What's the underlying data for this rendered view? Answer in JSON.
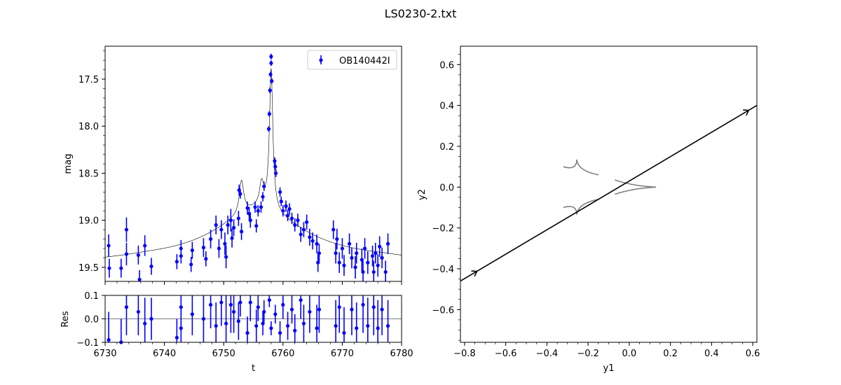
{
  "figure": {
    "title": "LS0230-2.txt"
  },
  "chart_data": [
    {
      "panel": "light-curve",
      "type": "scatter",
      "xlabel": "",
      "ylabel": "mag",
      "xlim": [
        6730,
        6780
      ],
      "ylim": [
        19.65,
        17.15
      ],
      "y_inverted": true,
      "xticks": [
        6730,
        6740,
        6750,
        6760,
        6770,
        6780
      ],
      "yticks": [
        17.5,
        18.0,
        18.5,
        19.0,
        19.5
      ],
      "ytick_labels": [
        "17.5",
        "18.0",
        "18.5",
        "19.0",
        "19.5"
      ],
      "legend": {
        "label": "OB140442I",
        "position": "top-right"
      },
      "series": [
        {
          "name": "OB140442I",
          "color": "#0000ff",
          "points": [
            [
              6730.6,
              19.27,
              0.12
            ],
            [
              6730.7,
              19.51,
              0.1
            ],
            [
              6732.7,
              19.51,
              0.1
            ],
            [
              6733.6,
              19.36,
              0.12
            ],
            [
              6733.6,
              19.1,
              0.13
            ],
            [
              6735.6,
              19.37,
              0.1
            ],
            [
              6735.8,
              19.63,
              0.1
            ],
            [
              6736.7,
              19.27,
              0.11
            ],
            [
              6737.8,
              19.49,
              0.09
            ],
            [
              6742.1,
              19.44,
              0.08
            ],
            [
              6742.8,
              19.38,
              0.08
            ],
            [
              6742.8,
              19.3,
              0.09
            ],
            [
              6744.5,
              19.47,
              0.08
            ],
            [
              6744.7,
              19.32,
              0.09
            ],
            [
              6746.6,
              19.29,
              0.1
            ],
            [
              6747.0,
              19.41,
              0.08
            ],
            [
              6747.8,
              19.2,
              0.1
            ],
            [
              6748.7,
              19.05,
              0.1
            ],
            [
              6749.2,
              19.3,
              0.1
            ],
            [
              6749.6,
              19.1,
              0.1
            ],
            [
              6750.2,
              19.25,
              0.12
            ],
            [
              6750.4,
              19.39,
              0.12
            ],
            [
              6750.7,
              19.05,
              0.1
            ],
            [
              6751.2,
              19.0,
              0.12
            ],
            [
              6751.4,
              19.19,
              0.1
            ],
            [
              6751.7,
              19.08,
              0.09
            ],
            [
              6752.5,
              18.98,
              0.08
            ],
            [
              6752.6,
              18.68,
              0.06
            ],
            [
              6752.8,
              18.72,
              0.05
            ],
            [
              6753.0,
              19.12,
              0.09
            ],
            [
              6754.0,
              18.87,
              0.07
            ],
            [
              6754.3,
              18.93,
              0.07
            ],
            [
              6754.5,
              19.0,
              0.08
            ],
            [
              6755.3,
              18.86,
              0.06
            ],
            [
              6755.5,
              19.06,
              0.07
            ],
            [
              6755.8,
              18.9,
              0.06
            ],
            [
              6756.3,
              18.86,
              0.06
            ],
            [
              6756.6,
              18.75,
              0.05
            ],
            [
              6756.8,
              18.64,
              0.05
            ],
            [
              6757.6,
              18.03,
              0.03
            ],
            [
              6757.7,
              17.87,
              0.03
            ],
            [
              6757.8,
              17.62,
              0.03
            ],
            [
              6757.9,
              17.45,
              0.03
            ],
            [
              6758.0,
              17.33,
              0.03
            ],
            [
              6758.0,
              17.26,
              0.03
            ],
            [
              6758.1,
              17.52,
              0.03
            ],
            [
              6758.6,
              18.37,
              0.04
            ],
            [
              6758.7,
              18.43,
              0.04
            ],
            [
              6758.8,
              18.5,
              0.04
            ],
            [
              6759.5,
              18.7,
              0.05
            ],
            [
              6759.7,
              18.8,
              0.05
            ],
            [
              6760.0,
              18.9,
              0.06
            ],
            [
              6760.5,
              18.85,
              0.06
            ],
            [
              6760.8,
              18.95,
              0.06
            ],
            [
              6761.1,
              18.88,
              0.06
            ],
            [
              6761.5,
              18.98,
              0.06
            ],
            [
              6762.0,
              19.05,
              0.07
            ],
            [
              6762.5,
              19.0,
              0.07
            ],
            [
              6763.0,
              19.15,
              0.08
            ],
            [
              6763.5,
              19.1,
              0.08
            ],
            [
              6764.0,
              19.02,
              0.08
            ],
            [
              6764.5,
              19.18,
              0.09
            ],
            [
              6765.0,
              19.22,
              0.09
            ],
            [
              6765.7,
              19.25,
              0.1
            ],
            [
              6765.9,
              19.45,
              0.1
            ],
            [
              6766.1,
              19.35,
              0.1
            ],
            [
              6768.5,
              19.1,
              0.1
            ],
            [
              6768.9,
              19.35,
              0.11
            ],
            [
              6769.1,
              19.2,
              0.11
            ],
            [
              6769.5,
              19.45,
              0.11
            ],
            [
              6770.0,
              19.3,
              0.11
            ],
            [
              6770.3,
              19.48,
              0.11
            ],
            [
              6771.2,
              19.25,
              0.11
            ],
            [
              6771.6,
              19.4,
              0.11
            ],
            [
              6772.2,
              19.5,
              0.12
            ],
            [
              6772.4,
              19.35,
              0.11
            ],
            [
              6773.3,
              19.42,
              0.12
            ],
            [
              6773.5,
              19.55,
              0.12
            ],
            [
              6773.8,
              19.3,
              0.11
            ],
            [
              6774.3,
              19.45,
              0.12
            ],
            [
              6775.1,
              19.38,
              0.11
            ],
            [
              6775.3,
              19.55,
              0.12
            ],
            [
              6775.6,
              19.35,
              0.11
            ],
            [
              6776.0,
              19.48,
              0.12
            ],
            [
              6776.3,
              19.28,
              0.11
            ],
            [
              6776.7,
              19.4,
              0.11
            ],
            [
              6777.3,
              19.55,
              0.12
            ],
            [
              6777.7,
              19.25,
              0.11
            ]
          ]
        }
      ]
    },
    {
      "panel": "residuals",
      "type": "scatter",
      "xlabel": "t",
      "ylabel": "Res",
      "xlim": [
        6730,
        6780
      ],
      "ylim": [
        -0.1,
        0.1
      ],
      "xticks": [
        6730,
        6740,
        6750,
        6760,
        6770,
        6780
      ],
      "xtick_labels": [
        "6730",
        "6740",
        "6750",
        "6760",
        "6770",
        "6780"
      ],
      "yticks": [
        -0.1,
        0.0,
        0.1
      ],
      "ytick_labels": [
        "−0.1",
        "0.0",
        "0.1"
      ],
      "series": [
        {
          "color": "#0000ff",
          "points": [
            [
              6730.6,
              -0.09,
              0.12
            ],
            [
              6732.7,
              -0.1,
              0.1
            ],
            [
              6733.6,
              0.05,
              0.12
            ],
            [
              6735.6,
              0.03,
              0.1
            ],
            [
              6736.7,
              -0.02,
              0.11
            ],
            [
              6737.8,
              0.0,
              0.09
            ],
            [
              6742.1,
              -0.08,
              0.08
            ],
            [
              6742.8,
              0.05,
              0.08
            ],
            [
              6742.8,
              -0.04,
              0.09
            ],
            [
              6744.7,
              0.02,
              0.09
            ],
            [
              6746.6,
              0.0,
              0.1
            ],
            [
              6747.8,
              0.06,
              0.1
            ],
            [
              6748.7,
              -0.03,
              0.1
            ],
            [
              6749.6,
              0.07,
              0.1
            ],
            [
              6750.4,
              -0.02,
              0.12
            ],
            [
              6751.2,
              0.06,
              0.12
            ],
            [
              6751.7,
              0.03,
              0.09
            ],
            [
              6752.5,
              -0.01,
              0.08
            ],
            [
              6752.8,
              0.07,
              0.06
            ],
            [
              6754.0,
              -0.06,
              0.07
            ],
            [
              6754.5,
              0.07,
              0.08
            ],
            [
              6755.5,
              -0.03,
              0.07
            ],
            [
              6755.8,
              0.05,
              0.06
            ],
            [
              6756.6,
              -0.02,
              0.05
            ],
            [
              6756.8,
              0.03,
              0.05
            ],
            [
              6757.7,
              0.08,
              0.03
            ],
            [
              6758.0,
              -0.04,
              0.03
            ],
            [
              6758.7,
              0.02,
              0.04
            ],
            [
              6759.5,
              -0.06,
              0.05
            ],
            [
              6760.0,
              0.06,
              0.06
            ],
            [
              6760.8,
              -0.03,
              0.06
            ],
            [
              6761.5,
              0.04,
              0.06
            ],
            [
              6762.0,
              -0.05,
              0.07
            ],
            [
              6763.0,
              0.08,
              0.08
            ],
            [
              6763.5,
              -0.02,
              0.08
            ],
            [
              6764.5,
              0.03,
              0.09
            ],
            [
              6765.7,
              -0.04,
              0.1
            ],
            [
              6766.1,
              0.04,
              0.1
            ],
            [
              6768.9,
              -0.03,
              0.11
            ],
            [
              6769.5,
              0.05,
              0.11
            ],
            [
              6770.3,
              -0.06,
              0.11
            ],
            [
              6771.6,
              0.04,
              0.11
            ],
            [
              6772.4,
              -0.04,
              0.11
            ],
            [
              6773.5,
              0.06,
              0.12
            ],
            [
              6774.3,
              -0.03,
              0.12
            ],
            [
              6775.3,
              0.05,
              0.12
            ],
            [
              6776.0,
              -0.04,
              0.12
            ],
            [
              6776.7,
              0.04,
              0.11
            ],
            [
              6777.7,
              -0.03,
              0.11
            ]
          ]
        }
      ]
    },
    {
      "panel": "trajectory",
      "type": "line",
      "xlabel": "y1",
      "ylabel": "y2",
      "xlim": [
        -0.82,
        0.62
      ],
      "ylim": [
        -0.76,
        0.69
      ],
      "xticks": [
        -0.8,
        -0.6,
        -0.4,
        -0.2,
        0.0,
        0.2,
        0.4,
        0.6
      ],
      "xtick_labels": [
        "−0.8",
        "−0.6",
        "−0.4",
        "−0.2",
        "0.0",
        "0.2",
        "0.4",
        "0.6"
      ],
      "yticks": [
        -0.6,
        -0.4,
        -0.2,
        0.0,
        0.2,
        0.4,
        0.6
      ],
      "ytick_labels": [
        "−0.6",
        "−0.4",
        "−0.2",
        "0.0",
        "0.2",
        "0.4",
        "0.6"
      ],
      "trajectory": {
        "color": "#000000",
        "start": [
          -0.82,
          -0.46
        ],
        "end": [
          0.62,
          0.4
        ],
        "arrows_at": [
          -0.74,
          0.58
        ]
      },
      "caustics": {
        "color": "#808080",
        "curves": [
          [
            [
              -0.32,
              0.1
            ],
            [
              -0.255,
              0.08
            ],
            [
              -0.255,
              0.135
            ],
            [
              -0.25,
              0.08
            ],
            [
              -0.15,
              0.06
            ]
          ],
          [
            [
              -0.32,
              -0.1
            ],
            [
              -0.255,
              -0.08
            ],
            [
              -0.255,
              -0.135
            ],
            [
              -0.25,
              -0.08
            ],
            [
              -0.15,
              -0.06
            ]
          ],
          [
            [
              -0.07,
              0.035
            ],
            [
              0.02,
              0.005
            ],
            [
              0.13,
              0.0
            ],
            [
              0.02,
              -0.005
            ],
            [
              -0.07,
              -0.035
            ]
          ]
        ]
      }
    }
  ]
}
